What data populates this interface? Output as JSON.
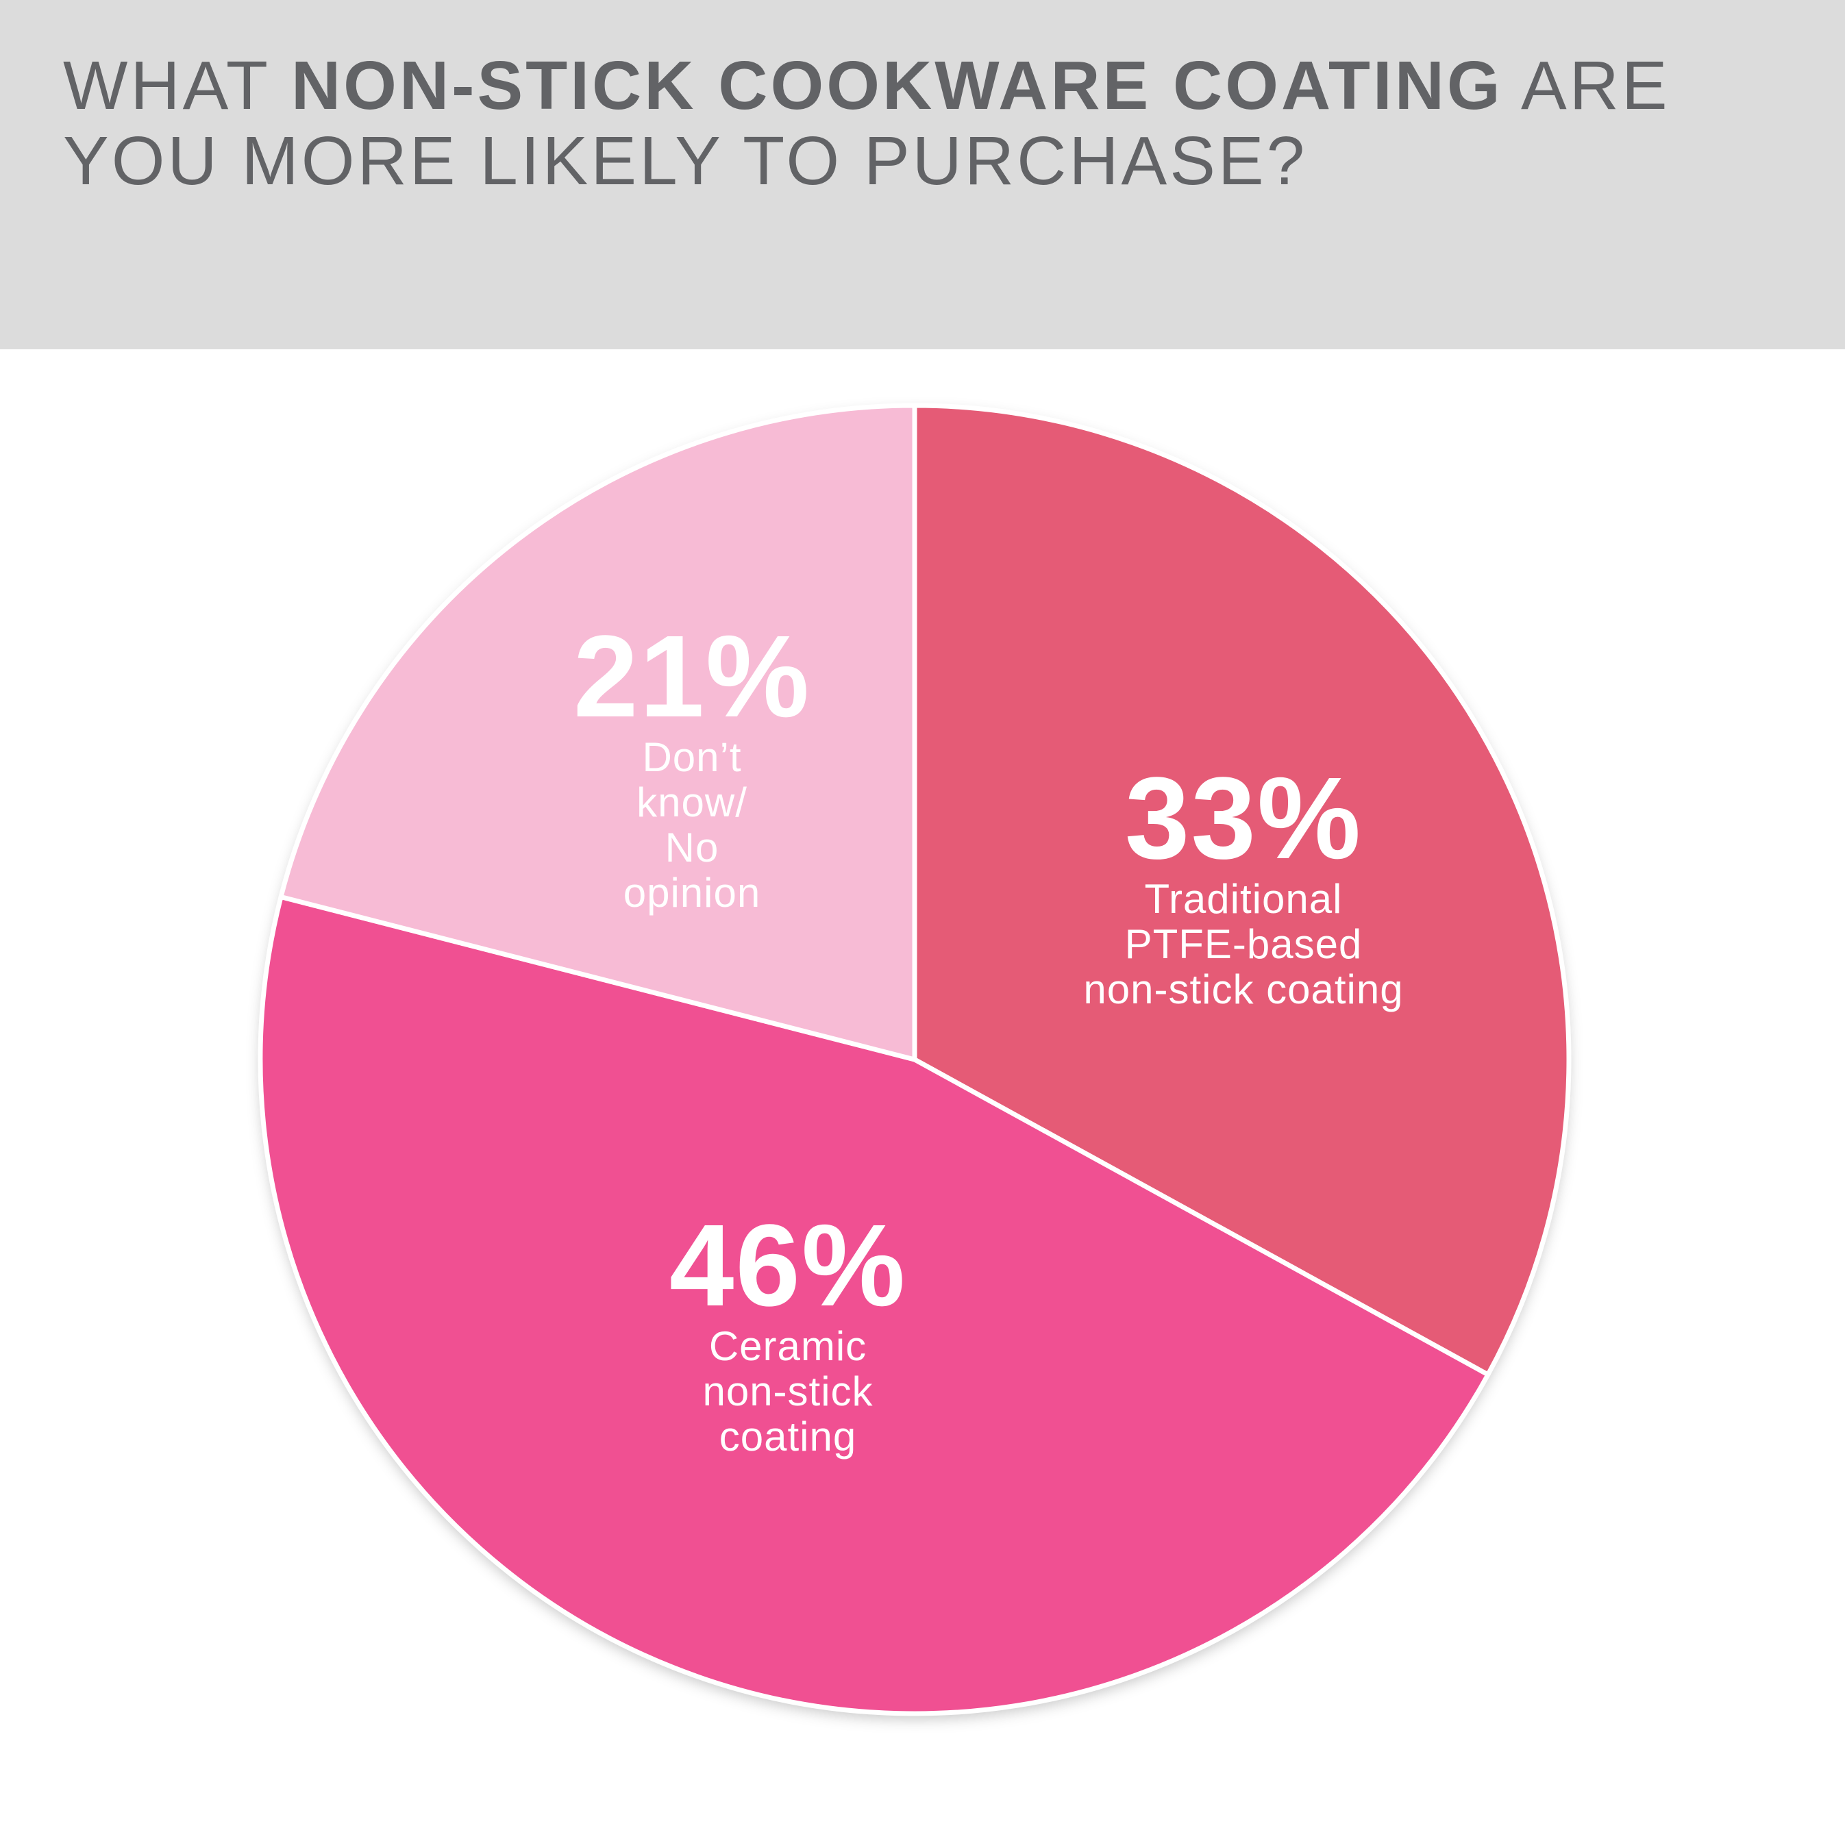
{
  "title": {
    "prefix": "WHAT ",
    "emphasis": "NON-STICK COOKWARE COATING",
    "suffix": " ARE YOU MORE LIKELY TO PURCHASE?"
  },
  "colors": {
    "header_bg": "#dcdcdc",
    "title_text": "#626366",
    "slice_ptfe": "#e55b76",
    "slice_ceramic": "#f05092",
    "slice_dont_know": "#f7bbd5",
    "divider": "#ffffff"
  },
  "chart_data": {
    "type": "pie",
    "start_angle_deg": 0,
    "direction": "clockwise",
    "slices": [
      {
        "label": "Traditional PTFE-based non-stick coating",
        "label_lines": [
          "Traditional",
          "PTFE-based",
          "non-stick coating"
        ],
        "value": 33,
        "display": "33%",
        "color": "#e55b76"
      },
      {
        "label": "Ceramic non-stick coating",
        "label_lines": [
          "Ceramic",
          "non-stick",
          "coating"
        ],
        "value": 46,
        "display": "46%",
        "color": "#f05092"
      },
      {
        "label": "Don’t know/ No opinion",
        "label_lines": [
          "Don’t",
          "know/",
          "No",
          "opinion"
        ],
        "value": 21,
        "display": "21%",
        "color": "#f7bbd5"
      }
    ]
  }
}
